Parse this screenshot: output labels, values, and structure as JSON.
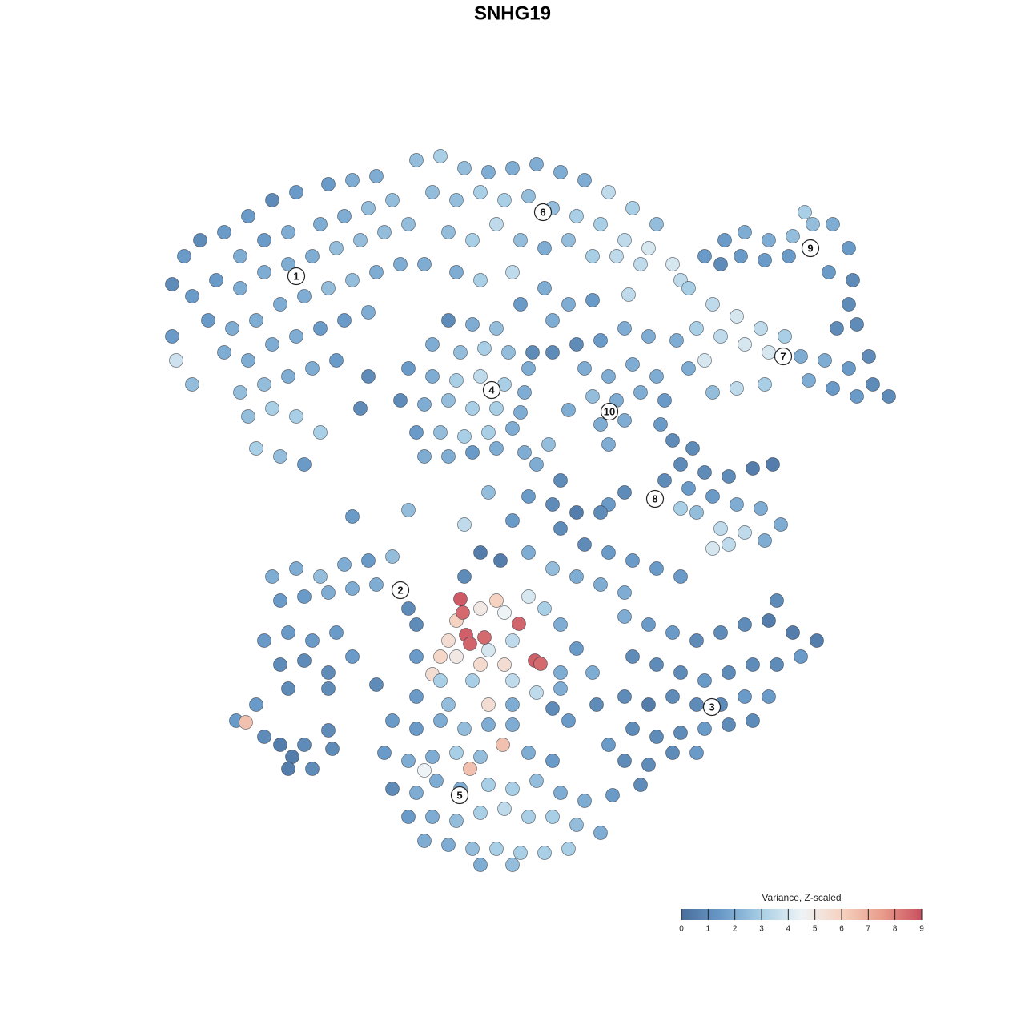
{
  "chart_data": {
    "type": "scatter",
    "title": "SNHG19",
    "xlim": [
      0,
      1280
    ],
    "ylim": [
      0,
      1280
    ],
    "x": [
      215,
      230,
      250,
      280,
      310,
      340,
      370,
      410,
      440,
      470,
      300,
      330,
      360,
      400,
      430,
      460,
      490,
      240,
      270,
      300,
      330,
      360,
      390,
      420,
      450,
      480,
      510,
      220,
      240,
      260,
      290,
      320,
      350,
      380,
      410,
      440,
      470,
      500,
      280,
      310,
      340,
      370,
      400,
      430,
      460,
      300,
      330,
      360,
      390,
      420,
      310,
      340,
      370,
      400,
      320,
      350,
      380,
      460,
      450,
      215,
      520,
      550,
      580,
      610,
      640,
      670,
      700,
      730,
      760,
      790,
      820,
      540,
      570,
      600,
      630,
      660,
      690,
      720,
      750,
      780,
      810,
      840,
      560,
      590,
      620,
      650,
      680,
      710,
      740,
      770,
      800,
      850,
      530,
      570,
      600,
      640,
      680,
      710,
      690,
      650,
      740,
      785,
      560,
      590,
      620,
      540,
      575,
      605,
      635,
      660,
      510,
      540,
      570,
      600,
      630,
      655,
      500,
      530,
      560,
      590,
      620,
      650,
      520,
      550,
      580,
      610,
      640,
      530,
      560,
      590,
      620,
      665,
      690,
      720,
      750,
      780,
      810,
      730,
      760,
      790,
      740,
      770,
      800,
      750,
      780,
      760,
      710,
      845,
      820,
      860,
      890,
      920,
      950,
      980,
      870,
      900,
      930,
      960,
      1000,
      1030,
      1060,
      1090,
      1110,
      1010,
      1040,
      1070,
      1085,
      860,
      890,
      920,
      955,
      880,
      1045,
      880,
      905,
      930,
      960,
      990,
      1015,
      1040,
      1060,
      1065,
      1060,
      1035,
      985,
      955,
      925,
      900,
      1005,
      1070,
      840,
      865,
      850,
      880,
      910,
      940,
      965,
      830,
      860,
      890,
      920,
      950,
      975,
      870,
      900,
      930,
      955,
      890,
      910,
      780,
      760,
      850,
      825,
      830,
      610,
      660,
      690,
      720,
      750,
      700,
      730,
      760,
      790,
      820,
      850,
      600,
      625,
      660,
      690,
      580,
      720,
      750,
      780,
      640,
      580,
      700,
      670,
      440,
      510,
      655,
      685,
      340,
      370,
      400,
      430,
      460,
      490,
      350,
      380,
      410,
      440,
      470,
      330,
      360,
      390,
      420,
      350,
      380,
      410,
      440,
      520,
      510,
      500,
      360,
      410,
      470,
      295,
      307,
      320,
      330,
      350,
      365,
      380,
      360,
      410,
      415,
      390,
      620,
      600,
      570,
      560,
      550,
      540,
      600,
      630,
      610,
      570,
      630,
      660,
      680,
      700,
      550,
      520,
      590,
      640,
      670,
      700,
      610,
      640,
      720,
      690,
      520,
      560,
      640,
      780,
      810,
      840,
      870,
      900,
      930,
      960,
      990,
      1020,
      790,
      820,
      850,
      880,
      910,
      940,
      970,
      1000,
      780,
      810,
      840,
      870,
      900,
      930,
      960,
      790,
      820,
      850,
      880,
      910,
      940,
      780,
      810,
      840,
      870,
      800,
      760,
      970,
      745,
      740,
      710,
      700,
      490,
      520,
      550,
      580,
      610,
      640,
      628,
      587,
      480,
      510,
      540,
      570,
      600,
      660,
      690,
      490,
      520,
      545,
      575,
      610,
      640,
      670,
      700,
      730,
      510,
      540,
      570,
      600,
      630,
      660,
      690,
      720,
      750,
      560,
      590,
      620,
      650,
      680,
      710,
      600,
      640,
      530,
      765,
      530,
      575,
      578,
      648,
      582,
      605,
      587,
      668,
      675
    ],
    "y": [
      925,
      960,
      980,
      990,
      1010,
      1030,
      1040,
      1050,
      1055,
      1060,
      960,
      980,
      990,
      1000,
      1010,
      1020,
      1030,
      910,
      930,
      920,
      940,
      950,
      960,
      970,
      980,
      990,
      1000,
      830,
      800,
      880,
      870,
      880,
      900,
      910,
      920,
      930,
      940,
      950,
      840,
      830,
      850,
      860,
      870,
      880,
      890,
      790,
      800,
      810,
      820,
      830,
      760,
      770,
      760,
      740,
      720,
      710,
      700,
      810,
      770,
      860,
      1080,
      1085,
      1070,
      1065,
      1070,
      1075,
      1065,
      1055,
      1040,
      1020,
      1000,
      1040,
      1030,
      1040,
      1030,
      1035,
      1020,
      1010,
      1000,
      980,
      970,
      950,
      990,
      980,
      1000,
      980,
      970,
      980,
      960,
      960,
      950,
      930,
      950,
      940,
      930,
      940,
      920,
      900,
      880,
      900,
      905,
      912,
      880,
      875,
      870,
      850,
      840,
      845,
      840,
      820,
      820,
      810,
      805,
      810,
      800,
      790,
      780,
      775,
      780,
      770,
      770,
      765,
      740,
      740,
      735,
      740,
      745,
      710,
      710,
      715,
      720,
      840,
      840,
      850,
      855,
      870,
      860,
      820,
      810,
      825,
      785,
      780,
      790,
      750,
      755,
      725,
      768,
      855,
      810,
      920,
      900,
      885,
      870,
      860,
      870,
      860,
      850,
      840,
      835,
      830,
      820,
      800,
      785,
      805,
      795,
      785,
      835,
      820,
      790,
      795,
      800,
      830,
      870,
      960,
      980,
      990,
      980,
      985,
      1000,
      1000,
      970,
      930,
      900,
      940,
      960,
      955,
      960,
      950,
      1015,
      875,
      730,
      720,
      700,
      690,
      685,
      695,
      700,
      680,
      670,
      660,
      650,
      645,
      625,
      640,
      620,
      615,
      605,
      595,
      600,
      665,
      650,
      645,
      750,
      780,
      665,
      660,
      650,
      640,
      640,
      620,
      600,
      590,
      580,
      570,
      560,
      590,
      580,
      590,
      570,
      560,
      560,
      550,
      540,
      630,
      625,
      680,
      700,
      635,
      643,
      715,
      725,
      560,
      570,
      560,
      575,
      580,
      585,
      530,
      535,
      540,
      545,
      550,
      480,
      490,
      480,
      490,
      450,
      455,
      440,
      460,
      500,
      520,
      545,
      420,
      420,
      425,
      380,
      378,
      400,
      360,
      350,
      335,
      350,
      320,
      368,
      345,
      320,
      530,
      520,
      505,
      480,
      460,
      438,
      450,
      450,
      400,
      460,
      515,
      535,
      520,
      500,
      430,
      460,
      430,
      430,
      415,
      440,
      468,
      480,
      470,
      395,
      410,
      400,
      400,
      510,
      500,
      490,
      480,
      490,
      500,
      505,
      490,
      480,
      460,
      450,
      440,
      430,
      440,
      450,
      450,
      460,
      410,
      400,
      410,
      400,
      400,
      410,
      410,
      370,
      360,
      365,
      370,
      375,
      380,
      330,
      325,
      340,
      340,
      300,
      350,
      530,
      400,
      440,
      380,
      420,
      380,
      370,
      380,
      370,
      375,
      375,
      350,
      320,
      340,
      330,
      335,
      340,
      335,
      340,
      330,
      295,
      290,
      305,
      295,
      300,
      295,
      305,
      290,
      280,
      260,
      260,
      255,
      265,
      270,
      260,
      260,
      250,
      240,
      225,
      220,
      220,
      215,
      215,
      220,
      200,
      200,
      230,
      287,
      318,
      532,
      515,
      501,
      487,
      484,
      476,
      455,
      451
    ],
    "values": [
      1,
      1.5,
      1,
      1.5,
      1.5,
      1,
      1.5,
      1.5,
      2,
      2,
      2,
      1.5,
      2,
      2,
      2,
      2.5,
      2.5,
      1.5,
      1.5,
      2,
      2,
      2,
      2,
      2.5,
      2.5,
      2.5,
      2.5,
      3.8,
      2.5,
      1.5,
      2,
      2,
      2,
      2,
      2.5,
      2.5,
      2,
      2,
      2,
      2,
      2,
      2,
      1.5,
      1.5,
      2,
      2.5,
      2.5,
      2,
      2,
      1.5,
      2.5,
      3,
      3,
      3,
      3,
      2.5,
      1.5,
      1,
      1,
      1.5,
      2.5,
      3,
      2.5,
      2,
      2,
      2,
      2,
      2,
      3.5,
      3,
      2.5,
      2.5,
      2.5,
      3,
      3,
      2.5,
      2.5,
      3,
      3,
      3.5,
      4,
      4,
      2.5,
      3,
      3.5,
      2.5,
      2,
      2.5,
      3,
      3.5,
      3.5,
      3.5,
      2,
      2,
      3,
      3.5,
      2,
      2,
      2,
      1.5,
      1.5,
      3.5,
      1,
      2,
      2.5,
      2,
      2.5,
      3,
      2.5,
      2,
      1.5,
      2,
      3,
      3.5,
      3,
      2,
      1,
      2,
      2.5,
      3,
      3,
      2,
      1.5,
      2.5,
      3,
      3,
      2,
      2,
      2,
      1.5,
      2,
      1,
      1,
      1,
      1.5,
      2,
      2,
      2,
      2,
      2,
      2.5,
      2,
      2,
      2,
      2,
      2,
      2,
      2,
      2,
      3,
      3.5,
      4,
      3.5,
      3,
      3,
      3.5,
      4,
      4,
      2,
      2,
      1.5,
      1,
      1,
      2,
      1.5,
      1.5,
      1,
      2,
      2.5,
      3.5,
      3,
      4,
      1,
      1.5,
      1.5,
      2,
      2,
      2.5,
      2.5,
      2,
      1.5,
      1,
      1,
      1.5,
      1.5,
      1.5,
      1.5,
      1,
      3,
      1,
      1,
      1,
      1,
      1,
      1,
      0.5,
      0.5,
      1,
      1.5,
      1.5,
      2,
      2,
      2,
      2.5,
      3.5,
      3.5,
      2,
      4,
      3.5,
      1,
      1.5,
      3,
      1.5,
      1.5,
      2.5,
      1.5,
      1,
      0.5,
      1,
      1,
      1,
      1.5,
      1.5,
      1.5,
      1.5,
      0.5,
      0.5,
      2,
      2.5,
      1,
      2,
      2,
      2,
      1.5,
      3.5,
      1,
      2,
      1.5,
      2.5,
      2,
      2.5,
      2,
      2,
      2.5,
      2,
      1.5,
      2.5,
      1.5,
      1.5,
      2,
      2,
      2,
      1.5,
      1.5,
      1.5,
      1.5,
      1,
      1,
      1,
      1.5,
      1,
      1,
      2,
      1,
      1,
      1,
      1.5,
      6.5,
      1.5,
      1,
      0.5,
      0.5,
      1,
      0.5,
      1,
      1,
      1,
      6,
      5,
      6,
      5.5,
      5.8,
      5.5,
      5.6,
      5.5,
      5.5,
      5,
      4.5,
      4,
      3,
      2,
      3,
      1.5,
      3,
      3.5,
      3.5,
      2,
      4,
      3.5,
      1.5,
      1,
      1.5,
      2.5,
      2,
      2,
      1.5,
      1.5,
      1,
      1,
      1,
      0.5,
      0.5,
      0.5,
      1,
      1,
      1,
      1.5,
      1,
      1,
      1,
      1.5,
      1,
      0.5,
      1,
      1,
      1,
      1.5,
      1.5,
      1,
      1,
      1,
      1.5,
      1,
      1,
      1,
      1,
      1,
      1.5,
      1,
      1.5,
      1,
      1,
      2,
      1.5,
      2,
      1.5,
      1.5,
      2,
      2.5,
      2,
      2,
      6.5,
      6.5,
      1.5,
      2,
      2,
      3,
      2.5,
      2,
      1.5,
      1,
      2,
      2,
      2,
      3,
      3,
      2.5,
      2,
      2,
      1.5,
      2,
      2.5,
      3,
      3.5,
      3,
      3,
      2.5,
      2,
      2,
      2.5,
      3,
      3,
      3,
      3,
      2,
      2.5,
      2,
      1.5,
      4.5,
      8.8,
      8.5,
      8.6,
      8.7,
      8.5,
      8.6,
      8.7,
      8.5
    ],
    "cluster_labels": [
      {
        "text": "1",
        "x": 370,
        "y": 935
      },
      {
        "text": "2",
        "x": 500,
        "y": 543
      },
      {
        "text": "3",
        "x": 889,
        "y": 397
      },
      {
        "text": "4",
        "x": 614,
        "y": 793
      },
      {
        "text": "5",
        "x": 574,
        "y": 287
      },
      {
        "text": "6",
        "x": 678,
        "y": 1015
      },
      {
        "text": "7",
        "x": 978,
        "y": 835
      },
      {
        "text": "8",
        "x": 818,
        "y": 657
      },
      {
        "text": "9",
        "x": 1012,
        "y": 970
      },
      {
        "text": "10",
        "x": 761,
        "y": 766
      }
    ],
    "colorbar": {
      "title": "Variance, Z-scaled",
      "lim": [
        0,
        9
      ],
      "ticks": [
        0,
        1,
        2,
        3,
        4,
        5,
        6,
        7,
        8,
        9
      ],
      "colors": [
        "#4a6e9c",
        "#6a9ac8",
        "#a8cfe5",
        "#eef3f6",
        "#f6d2c0",
        "#e99d8c",
        "#c9505f"
      ]
    }
  }
}
